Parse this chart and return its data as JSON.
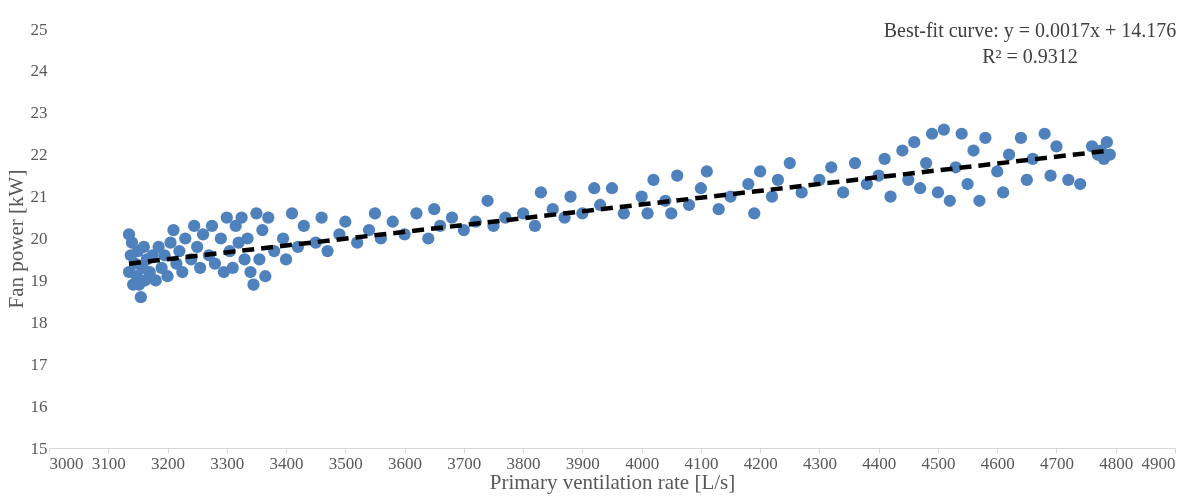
{
  "chart_data": {
    "type": "scatter",
    "xlabel": "Primary ventilation rate [L/s]",
    "ylabel": "Fan power [kW]",
    "annotations": [
      "Best-fit curve: y = 0.0017x + 14.176",
      "R² = 0.9312"
    ],
    "xlim": [
      3000,
      4900
    ],
    "xticks": [
      3000,
      3100,
      3200,
      3300,
      3400,
      3500,
      3600,
      3700,
      3800,
      3900,
      4000,
      4100,
      4200,
      4300,
      4400,
      4500,
      4600,
      4700,
      4800,
      4900
    ],
    "ylim": [
      15,
      25
    ],
    "yticks": [
      15,
      16,
      17,
      18,
      19,
      20,
      21,
      22,
      23,
      24,
      25
    ],
    "grid": false,
    "marker": "circle",
    "series": [
      {
        "type": "scatter",
        "color": "#4f81bd",
        "x": [
          3135,
          3135,
          3138,
          3140,
          3142,
          3145,
          3148,
          3150,
          3152,
          3155,
          3158,
          3160,
          3162,
          3165,
          3170,
          3175,
          3180,
          3185,
          3190,
          3195,
          3200,
          3205,
          3210,
          3215,
          3220,
          3225,
          3230,
          3240,
          3245,
          3250,
          3255,
          3260,
          3270,
          3275,
          3280,
          3290,
          3295,
          3300,
          3305,
          3310,
          3315,
          3320,
          3325,
          3330,
          3335,
          3340,
          3345,
          3350,
          3355,
          3360,
          3365,
          3370,
          3380,
          3395,
          3400,
          3410,
          3420,
          3430,
          3450,
          3460,
          3470,
          3490,
          3500,
          3520,
          3540,
          3550,
          3560,
          3580,
          3600,
          3620,
          3640,
          3650,
          3660,
          3680,
          3700,
          3720,
          3740,
          3750,
          3770,
          3800,
          3820,
          3830,
          3850,
          3870,
          3880,
          3900,
          3920,
          3930,
          3950,
          3970,
          4000,
          4010,
          4020,
          4040,
          4050,
          4060,
          4080,
          4100,
          4110,
          4130,
          4150,
          4180,
          4190,
          4200,
          4220,
          4230,
          4250,
          4270,
          4300,
          4320,
          4340,
          4360,
          4380,
          4400,
          4410,
          4420,
          4440,
          4450,
          4460,
          4470,
          4480,
          4490,
          4500,
          4510,
          4520,
          4530,
          4540,
          4550,
          4560,
          4570,
          4580,
          4600,
          4610,
          4620,
          4640,
          4650,
          4660,
          4680,
          4690,
          4700,
          4720,
          4740,
          4760,
          4770,
          4775,
          4780,
          4785,
          4790
        ],
        "values": [
          20.1,
          19.2,
          19.6,
          19.9,
          18.9,
          19.4,
          19.1,
          19.7,
          18.9,
          18.6,
          19.3,
          19.8,
          19.0,
          19.5,
          19.2,
          19.6,
          19.0,
          19.8,
          19.3,
          19.6,
          19.1,
          19.9,
          20.2,
          19.4,
          19.7,
          19.2,
          20.0,
          19.5,
          20.3,
          19.8,
          19.3,
          20.1,
          19.6,
          20.3,
          19.4,
          20.0,
          19.2,
          20.5,
          19.7,
          19.3,
          20.3,
          19.9,
          20.5,
          19.5,
          20.0,
          19.2,
          18.9,
          20.6,
          19.5,
          20.2,
          19.1,
          20.5,
          19.7,
          20.0,
          19.5,
          20.6,
          19.8,
          20.3,
          19.9,
          20.5,
          19.7,
          20.1,
          20.4,
          19.9,
          20.2,
          20.6,
          20.0,
          20.4,
          20.1,
          20.6,
          20.0,
          20.7,
          20.3,
          20.5,
          20.2,
          20.4,
          20.9,
          20.3,
          20.5,
          20.6,
          20.3,
          21.1,
          20.7,
          20.5,
          21.0,
          20.6,
          21.2,
          20.8,
          21.2,
          20.6,
          21.0,
          20.6,
          21.4,
          20.9,
          20.6,
          21.5,
          20.8,
          21.2,
          21.6,
          20.7,
          21.0,
          21.3,
          20.6,
          21.6,
          21.0,
          21.4,
          21.8,
          21.1,
          21.4,
          21.7,
          21.1,
          21.8,
          21.3,
          21.5,
          21.9,
          21.0,
          22.1,
          21.4,
          22.3,
          21.2,
          21.8,
          22.5,
          21.1,
          22.6,
          20.9,
          21.7,
          22.5,
          21.3,
          22.1,
          20.9,
          22.4,
          21.6,
          21.1,
          22.0,
          22.4,
          21.4,
          21.9,
          22.5,
          21.5,
          22.2,
          21.4,
          21.3,
          22.2,
          22.0,
          22.1,
          21.9,
          22.3,
          22.0
        ]
      },
      {
        "type": "line",
        "color": "#000000",
        "line_style": "dashed",
        "marker": "none",
        "x": [
          3135,
          4790
        ],
        "values": [
          19.4,
          22.1
        ]
      }
    ]
  }
}
